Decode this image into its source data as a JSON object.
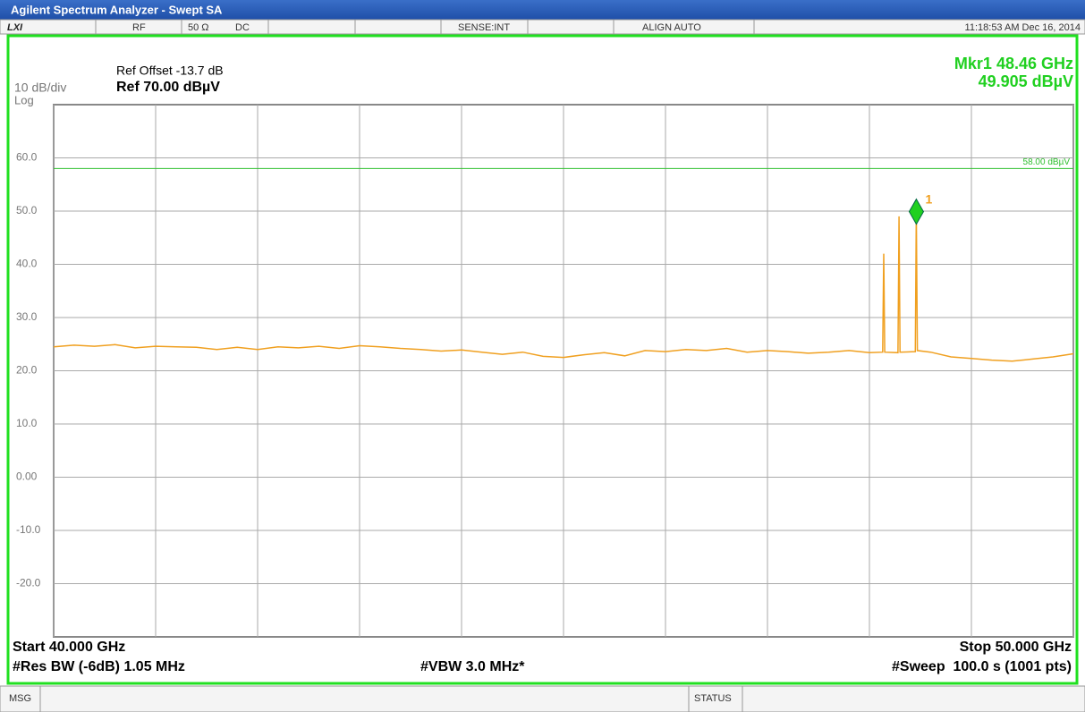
{
  "window_title": "Agilent Spectrum Analyzer - Swept SA",
  "status_bar": {
    "logo": "LXI",
    "input": "RF",
    "impedance": "50 Ω",
    "coupling": "DC",
    "sense": "SENSE:INT",
    "align": "ALIGN AUTO",
    "datetime": "11:18:53 AM Dec 16, 2014"
  },
  "header": {
    "ref_offset": "Ref Offset -13.7 dB",
    "scale": "10 dB/div",
    "ref_level": "Ref 70.00 dBµV",
    "scale_type": "Log",
    "marker_freq": "Mkr1 48.46 GHz",
    "marker_level": "49.905 dBµV"
  },
  "footer": {
    "start": "Start 40.000 GHz",
    "stop": "Stop 50.000 GHz",
    "rbw": "#Res BW (-6dB) 1.05 MHz",
    "vbw": "#VBW 3.0 MHz*",
    "sweep": "#Sweep  100.0 s (1001 pts)"
  },
  "bottom_bar": {
    "msg": "MSG",
    "status": "STATUS"
  },
  "chart_data": {
    "type": "line",
    "x": [
      40.0,
      40.2,
      40.4,
      40.6,
      40.8,
      41.0,
      41.2,
      41.4,
      41.6,
      41.8,
      42.0,
      42.2,
      42.4,
      42.6,
      42.8,
      43.0,
      43.2,
      43.4,
      43.6,
      43.8,
      44.0,
      44.2,
      44.4,
      44.6,
      44.8,
      45.0,
      45.2,
      45.4,
      45.6,
      45.8,
      46.0,
      46.2,
      46.4,
      46.6,
      46.8,
      47.0,
      47.2,
      47.4,
      47.6,
      47.8,
      48.0,
      48.13,
      48.14,
      48.15,
      48.28,
      48.29,
      48.3,
      48.45,
      48.46,
      48.47,
      48.6,
      48.8,
      49.0,
      49.2,
      49.4,
      49.6,
      49.8,
      50.0
    ],
    "series": [
      {
        "color": "#f0a020",
        "values": [
          24.5,
          24.8,
          24.6,
          24.9,
          24.3,
          24.6,
          24.5,
          24.4,
          24.0,
          24.4,
          24.0,
          24.5,
          24.3,
          24.6,
          24.2,
          24.7,
          24.5,
          24.2,
          24.0,
          23.7,
          23.9,
          23.5,
          23.1,
          23.5,
          22.7,
          22.5,
          23.0,
          23.4,
          22.8,
          23.8,
          23.6,
          24.0,
          23.8,
          24.2,
          23.5,
          23.8,
          23.6,
          23.3,
          23.5,
          23.8,
          23.4,
          23.5,
          42.0,
          23.5,
          23.4,
          49.0,
          23.5,
          23.6,
          49.9,
          23.8,
          23.5,
          22.6,
          22.3,
          22.0,
          21.8,
          22.2,
          22.6,
          23.2
        ]
      }
    ],
    "xlim": [
      40,
      50
    ],
    "xticks": [
      40,
      41,
      42,
      43,
      44,
      45,
      46,
      47,
      48,
      49,
      50
    ],
    "ylim": [
      -30,
      70
    ],
    "yticks": [
      {
        "value": 60,
        "label": "60.0"
      },
      {
        "value": 50,
        "label": "50.0"
      },
      {
        "value": 40,
        "label": "40.0"
      },
      {
        "value": 30,
        "label": "30.0"
      },
      {
        "value": 20,
        "label": "20.0"
      },
      {
        "value": 10,
        "label": "10.0"
      },
      {
        "value": 0,
        "label": "0.00"
      },
      {
        "value": -10,
        "label": "-10.0"
      },
      {
        "value": -20,
        "label": "-20.0"
      }
    ],
    "grid": true,
    "limit_line": {
      "value": 58,
      "label": "58.00 dBµV",
      "color": "#30c030"
    },
    "marker": {
      "x": 48.46,
      "y": 49.905,
      "label": "1",
      "color": "#20d020"
    }
  }
}
